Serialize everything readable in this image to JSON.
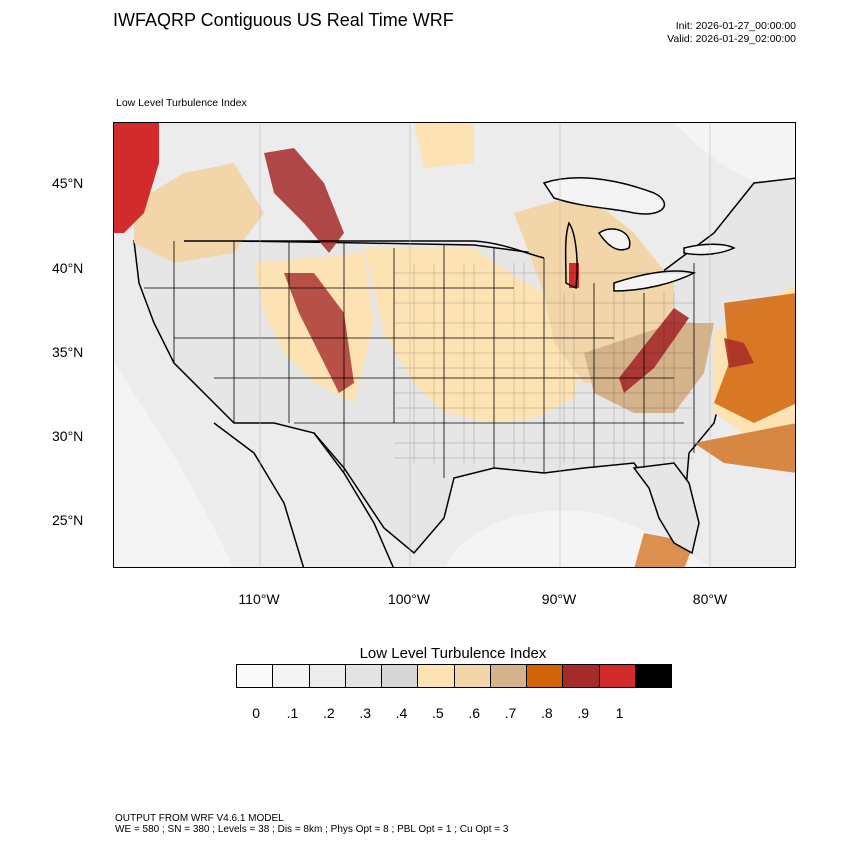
{
  "header": {
    "title": "IWFAQRP Contiguous US Real Time WRF",
    "init": "Init: 2026-01-27_00:00:00",
    "valid": "Valid: 2026-01-29_02:00:00",
    "subtitle": "Low Level Turbulence Index"
  },
  "map": {
    "lat_labels": [
      "45°N",
      "40°N",
      "35°N",
      "30°N",
      "25°N"
    ],
    "lon_labels": [
      "110°W",
      "100°W",
      "90°W",
      "80°W"
    ],
    "colors": {
      "background_gray": "#ececec",
      "light_gray": "#f4f4f4",
      "mid_gray": "#dcdcdc",
      "pale_orange": "#fde3b4",
      "tan": "#f2d5a8",
      "dark_tan": "#d4b28a",
      "orange": "#d2650a",
      "brown_red": "#a52a2a",
      "red": "#d12b2b"
    }
  },
  "colorbar": {
    "title": "Low Level Turbulence Index",
    "colors": [
      "#fafafa",
      "#f4f4f4",
      "#ececec",
      "#e3e3e3",
      "#d6d6d6",
      "#fde3b4",
      "#f2d5a8",
      "#d4b28a",
      "#d2650a",
      "#a52a2a",
      "#d12b2b",
      "#000000"
    ],
    "tick_labels": [
      "0",
      ".1",
      ".2",
      ".3",
      ".4",
      ".5",
      ".6",
      ".7",
      ".8",
      ".9",
      "1"
    ]
  },
  "footer": {
    "line1": "OUTPUT FROM WRF V4.6.1 MODEL",
    "line2": "WE = 580 ; SN = 380 ; Levels = 38 ; Dis = 8km ; Phys Opt = 8 ; PBL Opt = 1 ; Cu Opt = 3"
  }
}
